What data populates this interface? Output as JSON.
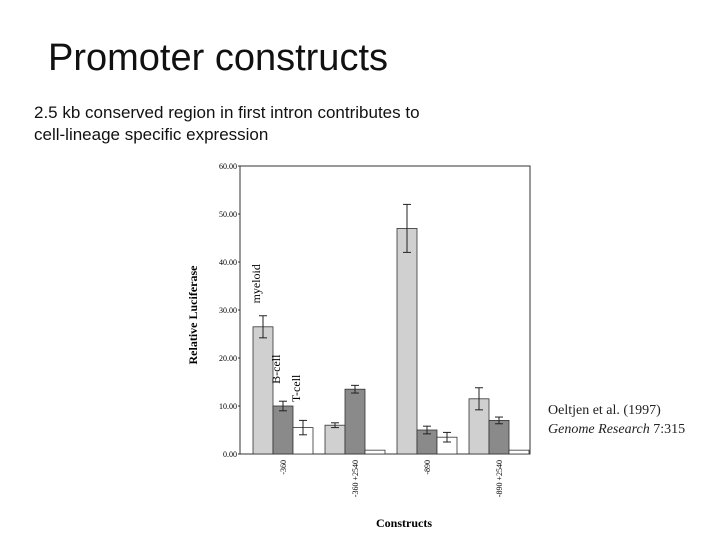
{
  "slide": {
    "title": "Promoter constructs",
    "subtitle_lines": [
      "2.5 kb conserved region in first intron contributes to",
      "cell-lineage specific expression"
    ],
    "citation": {
      "line1": "Oeltjen et al. (1997)",
      "journal": "Genome Research",
      "volume": "7:315"
    }
  },
  "chart_data": {
    "type": "bar",
    "y_label": "Relative Luciferase",
    "x_label": "Constructs",
    "categories": [
      "-360",
      "-360 +2540",
      "-890",
      "-890 +2540"
    ],
    "series": [
      {
        "name": "myeloid",
        "color": "#d0d0d0",
        "values": [
          26.5,
          6,
          47,
          11.5
        ],
        "errors": [
          2.3,
          0.5,
          5,
          2.3
        ]
      },
      {
        "name": "B-cell",
        "color": "#8a8a8a",
        "values": [
          10,
          13.5,
          5,
          7
        ],
        "errors": [
          1,
          0.8,
          0.8,
          0.7
        ]
      },
      {
        "name": "T-cell",
        "color": "#ffffff",
        "values": [
          5.5,
          0.8,
          3.5,
          0.8
        ],
        "errors": [
          1.5,
          null,
          1,
          null
        ]
      }
    ],
    "ylim": [
      0,
      60
    ],
    "yticks": [
      {
        "value": 0,
        "label": "0.00"
      },
      {
        "value": 10,
        "label": "10.00"
      },
      {
        "value": 20,
        "label": "20.00"
      },
      {
        "value": 30,
        "label": "30.00"
      },
      {
        "value": 40,
        "label": "40.00"
      },
      {
        "value": 50,
        "label": "50.00"
      },
      {
        "value": 60,
        "label": "60.00"
      }
    ]
  }
}
